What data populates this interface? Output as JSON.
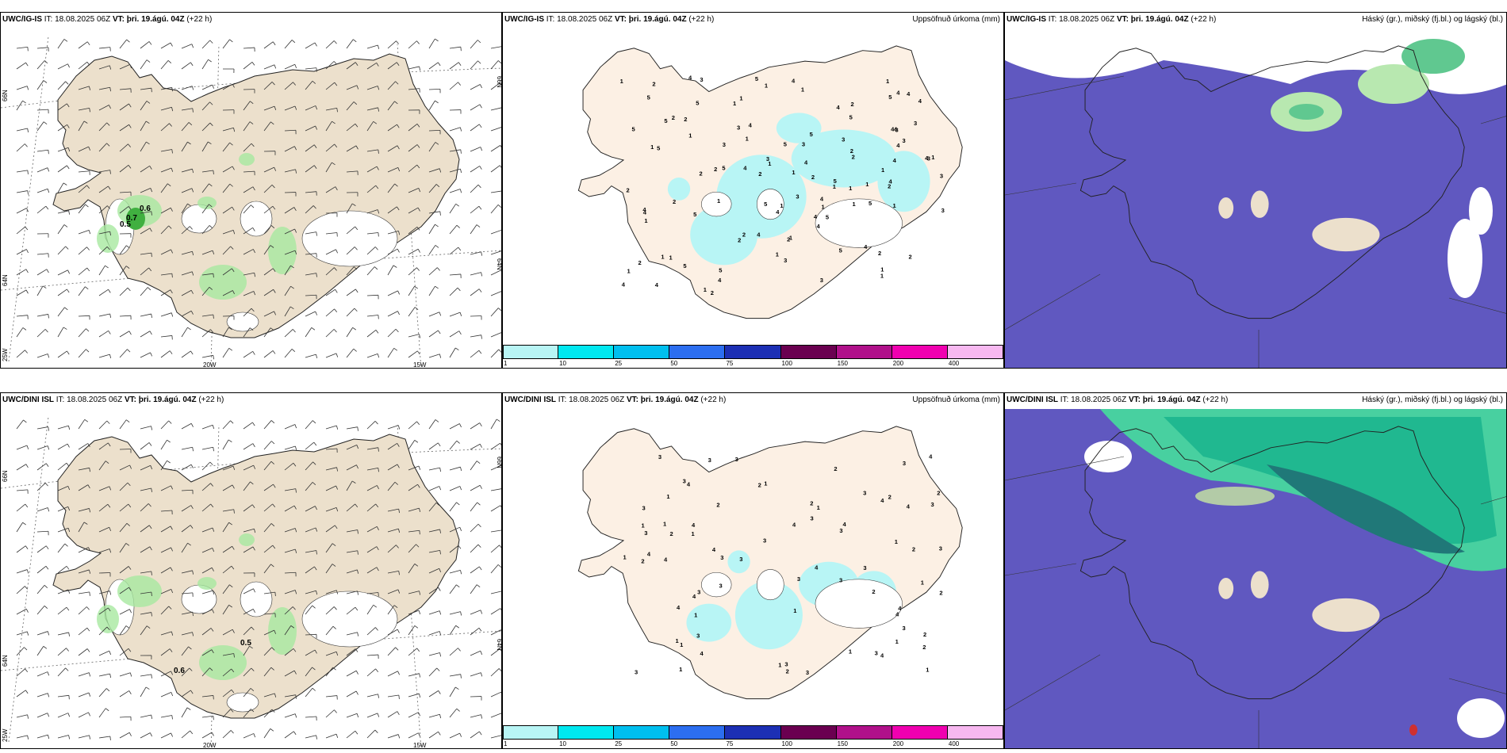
{
  "rows": [
    {
      "model": "UWC/IG-IS",
      "it_label": "IT:",
      "it_value": "18.08.2025 06Z",
      "vt_label": "VT:",
      "vt_value": "þri. 19.ágú. 04Z",
      "lead": "(+22 h)",
      "wind_labels": [
        "0.6",
        "0.7",
        "0.5"
      ],
      "precip_counts": [
        "1",
        "2",
        "3",
        "4",
        "5"
      ]
    },
    {
      "model": "UWC/DINI ISL",
      "it_label": "IT:",
      "it_value": "18.08.2025 06Z",
      "vt_label": "VT:",
      "vt_value": "þri. 19.ágú. 04Z",
      "lead": "(+22 h)",
      "wind_labels": [
        "0.5",
        "0.6"
      ],
      "precip_counts": [
        "1",
        "2",
        "3",
        "4"
      ]
    }
  ],
  "precip_title": "Uppsöfnuð úrkoma (mm)",
  "cloud_title": "Háský (gr.), miðský (fj.bl.) og lágský (bl.)",
  "colorbar": {
    "colors": [
      "#b8f5f5",
      "#00e8f0",
      "#00bfef",
      "#2c6ef0",
      "#1c2fb4",
      "#6a0050",
      "#b0108a",
      "#f000b0",
      "#f7b8f0"
    ],
    "labels": [
      "1",
      "10",
      "25",
      "50",
      "75",
      "100",
      "150",
      "200",
      "400"
    ]
  },
  "axis_labels": {
    "lat_66": "66N",
    "lat_64": "64N",
    "lon_25": "25W",
    "lon_20": "20W",
    "lon_15": "15W"
  },
  "land_color": "#ece0cc",
  "precip_land_color": "#fcf0e4",
  "cloud_bg_color": "#6058c0"
}
